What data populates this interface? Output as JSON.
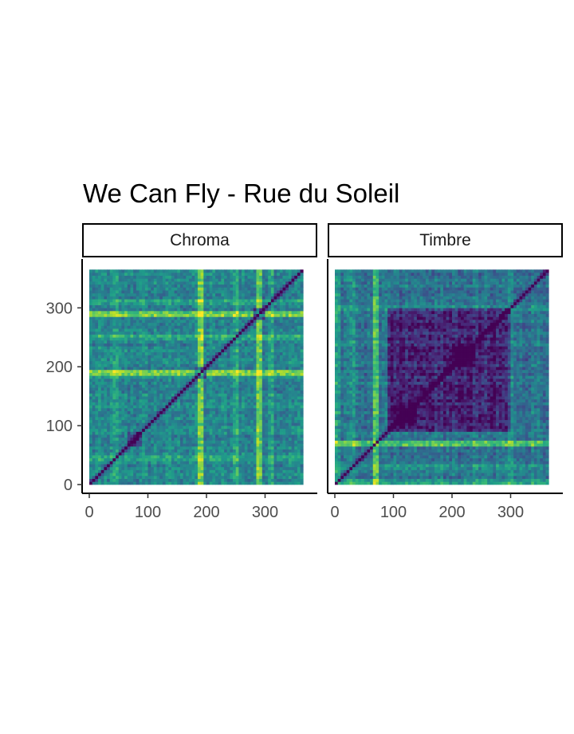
{
  "chart_data": {
    "type": "heatmap",
    "title": "We Can Fly - Rue du Soleil",
    "xlabel": "",
    "ylabel": "",
    "panels": [
      {
        "name": "Chroma",
        "colormap": "viridis",
        "xlim": [
          0,
          365
        ],
        "ylim": [
          0,
          365
        ],
        "mean_level": 0.45,
        "bright_lines": [
          {
            "pos": 188,
            "strength": 0.55
          },
          {
            "pos": 291,
            "strength": 0.5
          },
          {
            "pos": 248,
            "strength": 0.25
          },
          {
            "pos": 45,
            "strength": 0.15
          },
          {
            "pos": 310,
            "strength": 0.2
          }
        ],
        "dark_blocks": [
          {
            "from": 180,
            "to": 200,
            "depth": 0.35
          },
          {
            "from": 280,
            "to": 300,
            "depth": 0.35
          },
          {
            "from": 65,
            "to": 90,
            "depth": 0.2
          }
        ]
      },
      {
        "name": "Timbre",
        "colormap": "viridis",
        "xlim": [
          0,
          365
        ],
        "ylim": [
          0,
          365
        ],
        "mean_level": 0.38,
        "bright_lines": [
          {
            "pos": 72,
            "strength": 0.6
          },
          {
            "pos": 3,
            "strength": 0.3
          },
          {
            "pos": 30,
            "strength": 0.2
          },
          {
            "pos": 300,
            "strength": 0.2
          }
        ],
        "dark_blocks": [
          {
            "from": 90,
            "to": 300,
            "depth": 0.28
          },
          {
            "from": 100,
            "to": 140,
            "depth": 0.15
          },
          {
            "from": 200,
            "to": 240,
            "depth": 0.15
          }
        ]
      }
    ],
    "x_ticks": [
      0,
      100,
      200,
      300
    ],
    "y_ticks": [
      0,
      100,
      200,
      300
    ],
    "tick_labels": [
      "0",
      "100",
      "200",
      "300"
    ],
    "grid": false,
    "legend": "none"
  }
}
